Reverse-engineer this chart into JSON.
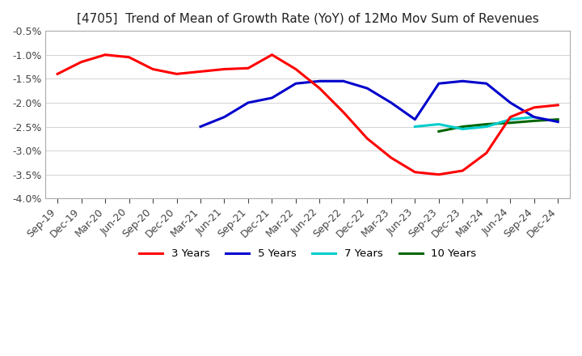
{
  "title": "[4705]  Trend of Mean of Growth Rate (YoY) of 12Mo Mov Sum of Revenues",
  "ylim": [
    -4.0,
    -0.5
  ],
  "yticks": [
    -4.0,
    -3.5,
    -3.0,
    -2.5,
    -2.0,
    -1.5,
    -1.0,
    -0.5
  ],
  "background_color": "#ffffff",
  "legend_labels": [
    "3 Years",
    "5 Years",
    "7 Years",
    "10 Years"
  ],
  "legend_colors": [
    "#ff0000",
    "#0000cc",
    "#00cccc",
    "#006600"
  ],
  "x_labels": [
    "Sep-19",
    "Dec-19",
    "Mar-20",
    "Jun-20",
    "Sep-20",
    "Dec-20",
    "Mar-21",
    "Jun-21",
    "Sep-21",
    "Dec-21",
    "Mar-22",
    "Jun-22",
    "Sep-22",
    "Dec-22",
    "Mar-23",
    "Jun-23",
    "Sep-23",
    "Dec-23",
    "Mar-24",
    "Jun-24",
    "Sep-24",
    "Dec-24"
  ],
  "series_3y": [
    -1.4,
    -1.15,
    -1.0,
    -1.05,
    -1.3,
    -1.4,
    -1.35,
    -1.3,
    -1.28,
    -1.0,
    -1.3,
    -1.7,
    -2.2,
    -2.75,
    -3.15,
    -3.45,
    -3.5,
    -3.42,
    -3.05,
    -2.3,
    -2.1,
    -2.05
  ],
  "series_5y": [
    null,
    null,
    null,
    null,
    null,
    null,
    -2.5,
    -2.3,
    -2.0,
    -1.9,
    -1.6,
    -1.55,
    -1.55,
    -1.7,
    -2.0,
    -2.35,
    -1.6,
    -1.55,
    -1.6,
    -2.0,
    -2.3,
    -2.4
  ],
  "series_7y": [
    null,
    null,
    null,
    null,
    null,
    null,
    null,
    null,
    null,
    null,
    null,
    null,
    null,
    null,
    null,
    -2.5,
    -2.45,
    -2.55,
    -2.5,
    -2.35,
    -2.3,
    null
  ],
  "series_10y": [
    null,
    null,
    null,
    null,
    null,
    null,
    null,
    null,
    null,
    null,
    null,
    null,
    null,
    null,
    null,
    null,
    -2.6,
    -2.5,
    -2.45,
    -2.42,
    -2.38,
    -2.35
  ]
}
